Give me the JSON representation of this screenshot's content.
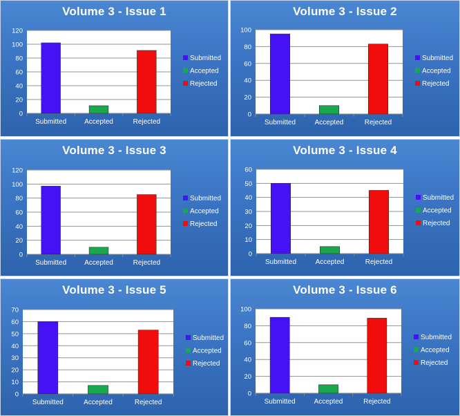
{
  "chart_data": [
    {
      "type": "bar",
      "title": "Volume 3 - Issue 1",
      "categories": [
        "Submitted",
        "Accepted",
        "Rejected"
      ],
      "values": [
        102,
        11,
        91
      ],
      "colors": [
        "#4412f5",
        "#1aa84d",
        "#f20d0d"
      ],
      "ylim": [
        0,
        120
      ],
      "yticks": [
        0,
        20,
        40,
        60,
        80,
        100,
        120
      ],
      "legend": [
        "Submitted",
        "Accepted",
        "Rejected"
      ],
      "legend_position": "right",
      "grid": true
    },
    {
      "type": "bar",
      "title": "Volume 3 - Issue 2",
      "categories": [
        "Submitted",
        "Accepted",
        "Rejected"
      ],
      "values": [
        95,
        10,
        83
      ],
      "colors": [
        "#4412f5",
        "#1aa84d",
        "#f20d0d"
      ],
      "ylim": [
        0,
        100
      ],
      "yticks": [
        0,
        20,
        40,
        60,
        80,
        100
      ],
      "legend": [
        "Submitted",
        "Accepted",
        "Rejected"
      ],
      "legend_position": "right",
      "grid": true
    },
    {
      "type": "bar",
      "title": "Volume 3 - Issue 3",
      "categories": [
        "Submitted",
        "Accepted",
        "Rejected"
      ],
      "values": [
        97,
        10,
        85
      ],
      "colors": [
        "#4412f5",
        "#1aa84d",
        "#f20d0d"
      ],
      "ylim": [
        0,
        120
      ],
      "yticks": [
        0,
        20,
        40,
        60,
        80,
        100,
        120
      ],
      "legend": [
        "Submitted",
        "Accepted",
        "Rejected"
      ],
      "legend_position": "right",
      "grid": true
    },
    {
      "type": "bar",
      "title": "Volume 3 - Issue 4",
      "categories": [
        "Submitted",
        "Accepted",
        "Rejected"
      ],
      "values": [
        50,
        5,
        45
      ],
      "colors": [
        "#4412f5",
        "#1aa84d",
        "#f20d0d"
      ],
      "ylim": [
        0,
        60
      ],
      "yticks": [
        0,
        10,
        20,
        30,
        40,
        50,
        60
      ],
      "legend": [
        "Submitted",
        "Accepted",
        "Rejected"
      ],
      "legend_position": "right",
      "grid": true
    },
    {
      "type": "bar",
      "title": "Volume 3 - Issue 5",
      "categories": [
        "Submitted",
        "Accepted",
        "Rejected"
      ],
      "values": [
        60,
        7,
        53
      ],
      "colors": [
        "#4412f5",
        "#1aa84d",
        "#f20d0d"
      ],
      "ylim": [
        0,
        70
      ],
      "yticks": [
        0,
        10,
        20,
        30,
        40,
        50,
        60,
        70
      ],
      "legend": [
        "Submitted",
        "Accepted",
        "Rejected"
      ],
      "legend_position": "right",
      "grid": true
    },
    {
      "type": "bar",
      "title": "Volume 3 - Issue 6",
      "categories": [
        "Submitted",
        "Accepted",
        "Rejected"
      ],
      "values": [
        90,
        10,
        89
      ],
      "colors": [
        "#4412f5",
        "#1aa84d",
        "#f20d0d"
      ],
      "ylim": [
        0,
        100
      ],
      "yticks": [
        0,
        20,
        40,
        60,
        80,
        100
      ],
      "legend": [
        "Submitted",
        "Accepted",
        "Rejected"
      ],
      "legend_position": "right",
      "grid": true
    }
  ]
}
